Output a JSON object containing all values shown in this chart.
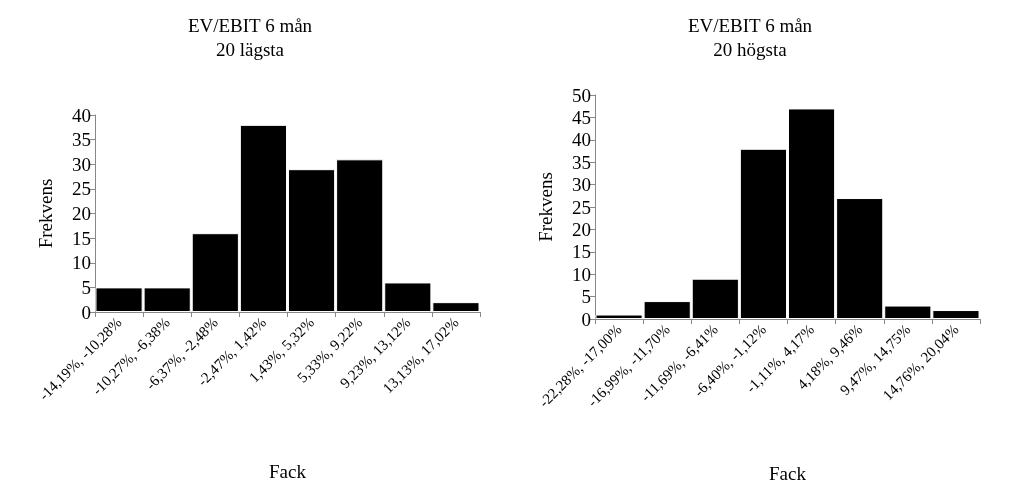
{
  "chart_data": [
    {
      "type": "bar",
      "title": "EV/EBIT 6 mån\n20 lägsta",
      "xlabel": "Fack",
      "ylabel": "Frekvens",
      "categories": [
        "-14,19%, -10,28%",
        "-10,27%, -6,38%",
        "-6,37%, -2,48%",
        "-2,47%, 1,42%",
        "1,43%, 5,32%",
        "5,33%, 9,22%",
        "9,23%, 13,12%",
        "13,13%, 17,02%"
      ],
      "values": [
        5,
        5,
        16,
        38,
        29,
        31,
        6,
        2
      ],
      "color": "#000000",
      "ylim": [
        0,
        40
      ],
      "yticks": [
        0,
        5,
        10,
        15,
        20,
        25,
        30,
        35,
        40
      ],
      "grid": false
    },
    {
      "type": "bar",
      "title": "EV/EBIT 6 mån\n20 högsta",
      "xlabel": "Fack",
      "ylabel": "Frekvens",
      "categories": [
        "-22,28%, -17,00%",
        "-16,99%, -11,70%",
        "-11,69%, -6,41%",
        "-6,40%, -1,12%",
        "-1,11%, 4,17%",
        "4,18%, 9,46%",
        "9,47%, 14,75%",
        "14,76%, 20,04%"
      ],
      "values": [
        1,
        4,
        9,
        38,
        47,
        27,
        3,
        2
      ],
      "color": "#000000",
      "ylim": [
        0,
        50
      ],
      "yticks": [
        0,
        5,
        10,
        15,
        20,
        25,
        30,
        35,
        40,
        45,
        50
      ],
      "grid": false
    }
  ]
}
